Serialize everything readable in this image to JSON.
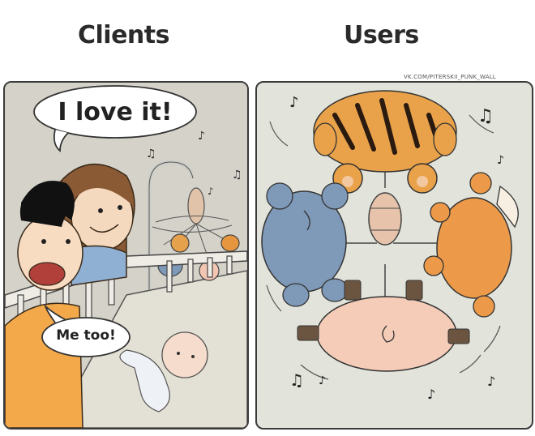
{
  "headings": {
    "left": "Clients",
    "right": "Users"
  },
  "credit": "VK.COM/PITERSKII_PUNK_WALL",
  "speech": {
    "parents": "I love it!",
    "dad": "Me too!"
  },
  "colors": {
    "panel_left_bg": "#d4d2c9",
    "panel_right_bg": "#e2e3da",
    "tiger": "#e9a24a",
    "elephant": "#7f99b8",
    "fox": "#ec9a49",
    "pig": "#f5ccb8"
  }
}
